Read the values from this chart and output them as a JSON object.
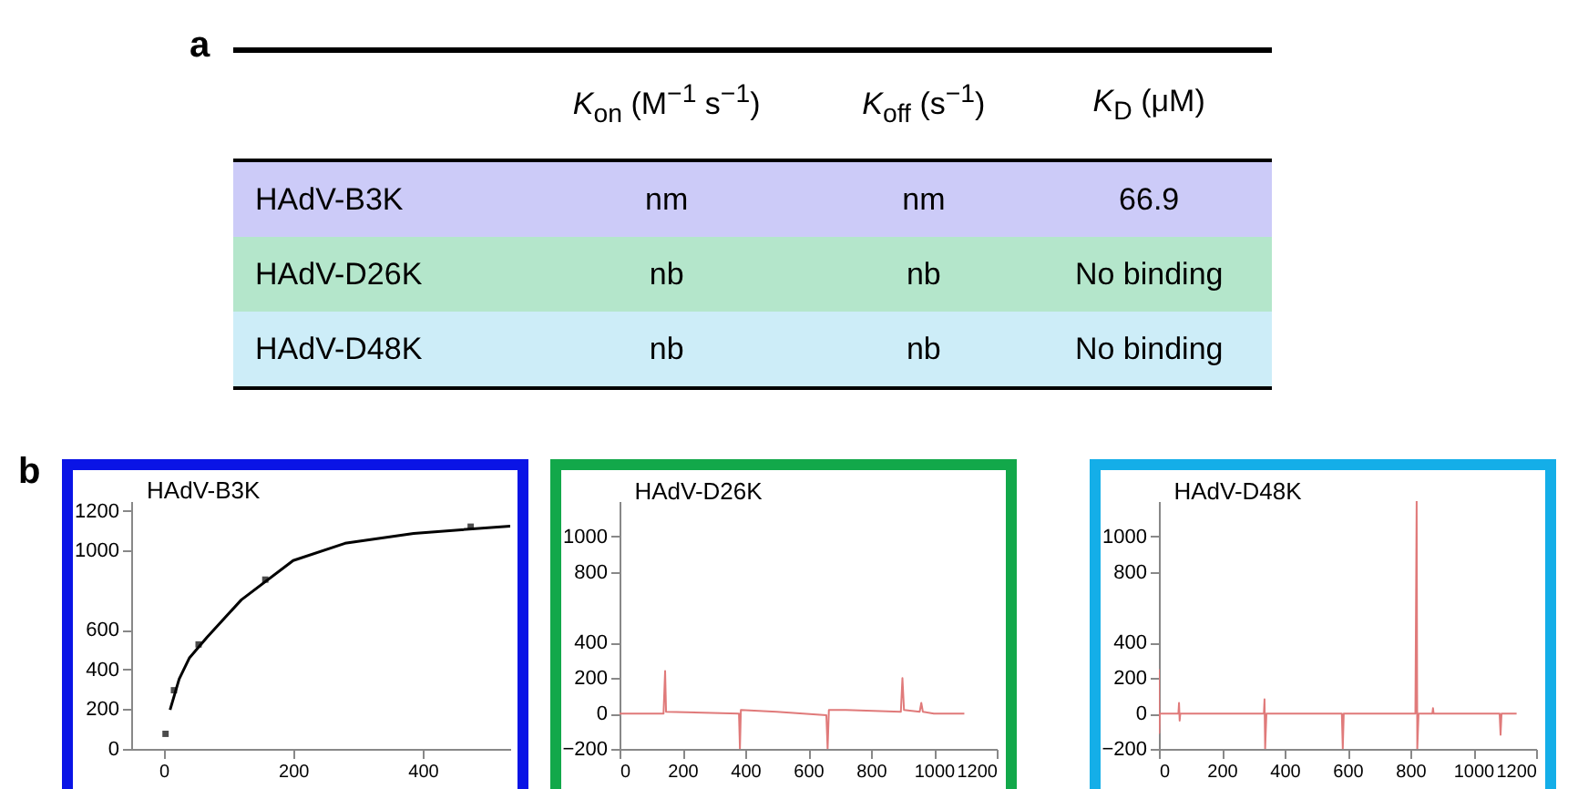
{
  "chart_data": [
    {
      "type": "other",
      "annotations": [
        "a"
      ],
      "categories": [
        "K$_{on}$ (M$^{−1}$ s$^{−1}$)",
        "K$_{off}$ (s$^{−1}$)",
        "K$_{D}$ (μM)"
      ],
      "y_categories": [
        "HAdV-B3K",
        "HAdV-D26K",
        "HAdV-D48K"
      ],
      "cell_labels": [
        [
          "nm",
          "nm",
          "66.9"
        ],
        [
          "nb",
          "nb",
          "No binding"
        ],
        [
          "nb",
          "nb",
          "No binding"
        ]
      ],
      "colors": [
        "#cccbf8",
        "#b4e6cb",
        "#cdedf8"
      ]
    },
    {
      "type": "scatter",
      "title": "HAdV-B3K",
      "annotations": [
        "b"
      ],
      "xlim": [
        -50,
        535
      ],
      "xticks": [
        0,
        200,
        400
      ],
      "ylim": [
        0,
        1250
      ],
      "yticks": [
        0,
        200,
        400,
        600,
        1000,
        1200
      ],
      "series": [
        {
          "type": "scatter",
          "marker": "square",
          "color": "#000000",
          "x": [
            3,
            16,
            54,
            157,
            474
          ],
          "values": [
            76,
            296,
            527,
            854,
            1121
          ]
        },
        {
          "type": "line",
          "color": "#000000",
          "x": [
            10,
            24,
            40,
            67,
            120,
            200,
            280,
            386,
            535
          ],
          "values": [
            197,
            352,
            460,
            563,
            752,
            950,
            1037,
            1087,
            1124
          ]
        }
      ]
    },
    {
      "type": "line",
      "title": "HAdV-D26K",
      "xlim": [
        0,
        1200
      ],
      "xticks": [
        0,
        200,
        400,
        600,
        800,
        1000,
        1200
      ],
      "ylim": [
        -200,
        1200
      ],
      "yticks": [
        -200,
        0,
        200,
        400,
        800,
        1000
      ],
      "series": [
        {
          "color": "#e07a7a",
          "x": [
            0,
            140,
            145,
            148,
            380,
            383,
            386,
            500,
            658,
            662,
            666,
            720,
            895,
            900,
            905,
            955,
            960,
            965,
            1000,
            1060,
            1097
          ],
          "values": [
            0,
            0,
            240,
            10,
            0,
            -200,
            20,
            10,
            -10,
            -200,
            20,
            20,
            10,
            200,
            20,
            10,
            60,
            10,
            0,
            0,
            0
          ]
        }
      ]
    },
    {
      "type": "line",
      "title": "HAdV-D48K",
      "xlim": [
        0,
        1200
      ],
      "xticks": [
        0,
        200,
        400,
        600,
        800,
        1000,
        1200
      ],
      "ylim": [
        -200,
        1200
      ],
      "yticks": [
        -200,
        0,
        200,
        400,
        800,
        1000
      ],
      "series": [
        {
          "color": "#e07a7a",
          "x": [
            0,
            1,
            3,
            62,
            64,
            66,
            68,
            334,
            336,
            338,
            342,
            582,
            585,
            588,
            816,
            820,
            822,
            826,
            870,
            872,
            874,
            1084,
            1087,
            1090,
            1138
          ],
          "values": [
            250,
            -110,
            0,
            0,
            60,
            -40,
            0,
            0,
            80,
            -200,
            0,
            0,
            -200,
            0,
            0,
            1200,
            -200,
            0,
            0,
            30,
            0,
            0,
            -120,
            0,
            0
          ]
        }
      ]
    }
  ]
}
